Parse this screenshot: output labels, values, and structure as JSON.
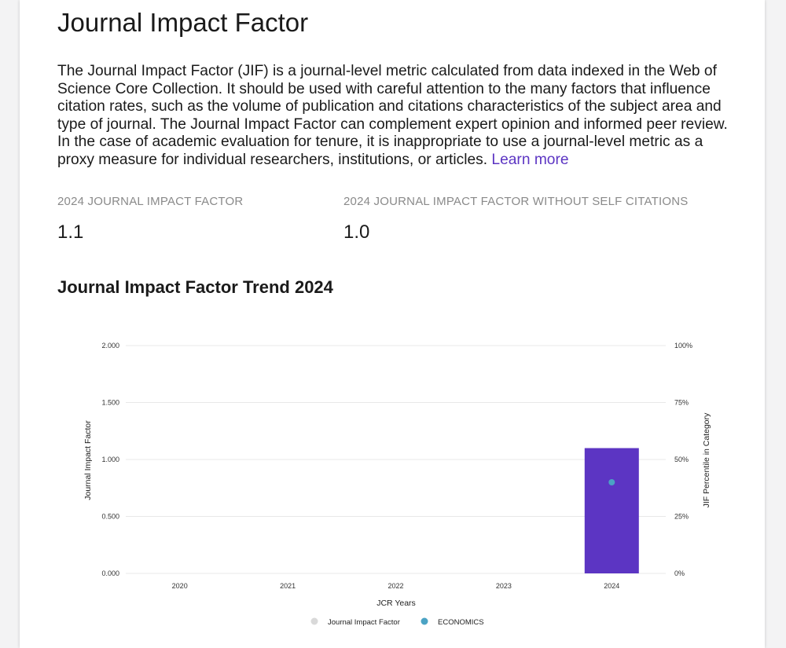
{
  "header": {
    "title": "Journal Impact Factor",
    "description": "The Journal Impact Factor (JIF) is a journal-level metric calculated from data indexed in the Web of Science Core Collection. It should be used with careful attention to the many factors that influence citation rates, such as the volume of publication and citations characteristics of the subject area and type of journal. The Journal Impact Factor can complement expert opinion and informed peer review. In the case of academic evaluation for tenure, it is inappropriate to use a journal-level metric as a proxy measure for individual researchers, institutions, or articles.",
    "learn_more": "Learn more"
  },
  "metrics": [
    {
      "label": "2024 JOURNAL IMPACT FACTOR",
      "value": "1.1"
    },
    {
      "label": "2024 JOURNAL IMPACT FACTOR WITHOUT SELF CITATIONS",
      "value": "1.0"
    }
  ],
  "chart_title": "Journal Impact Factor Trend 2024",
  "colors": {
    "bar": "#5c35c3",
    "percentile_dot": "#4ba3c4",
    "jif_legend_dot": "#d9d9d9",
    "grid": "#e8e8e8",
    "link": "#5c35c3"
  },
  "chart_data": {
    "type": "bar",
    "categories": [
      "2020",
      "2021",
      "2022",
      "2023",
      "2024"
    ],
    "series": [
      {
        "name": "Journal Impact Factor",
        "axis": "left",
        "values": [
          null,
          null,
          null,
          null,
          1.1
        ]
      },
      {
        "name": "ECONOMICS",
        "axis": "right",
        "type": "scatter",
        "values": [
          null,
          null,
          null,
          null,
          40
        ]
      }
    ],
    "xlabel": "JCR Years",
    "ylabel": "Journal Impact Factor",
    "y2label": "JIF Percentile in Category",
    "ylim": [
      0,
      2
    ],
    "y2lim": [
      0,
      100
    ],
    "yticks": [
      "0.000",
      "0.500",
      "1.000",
      "1.500",
      "2.000"
    ],
    "y2ticks": [
      "0%",
      "25%",
      "50%",
      "75%",
      "100%"
    ],
    "legend": "bottom",
    "grid": true
  }
}
